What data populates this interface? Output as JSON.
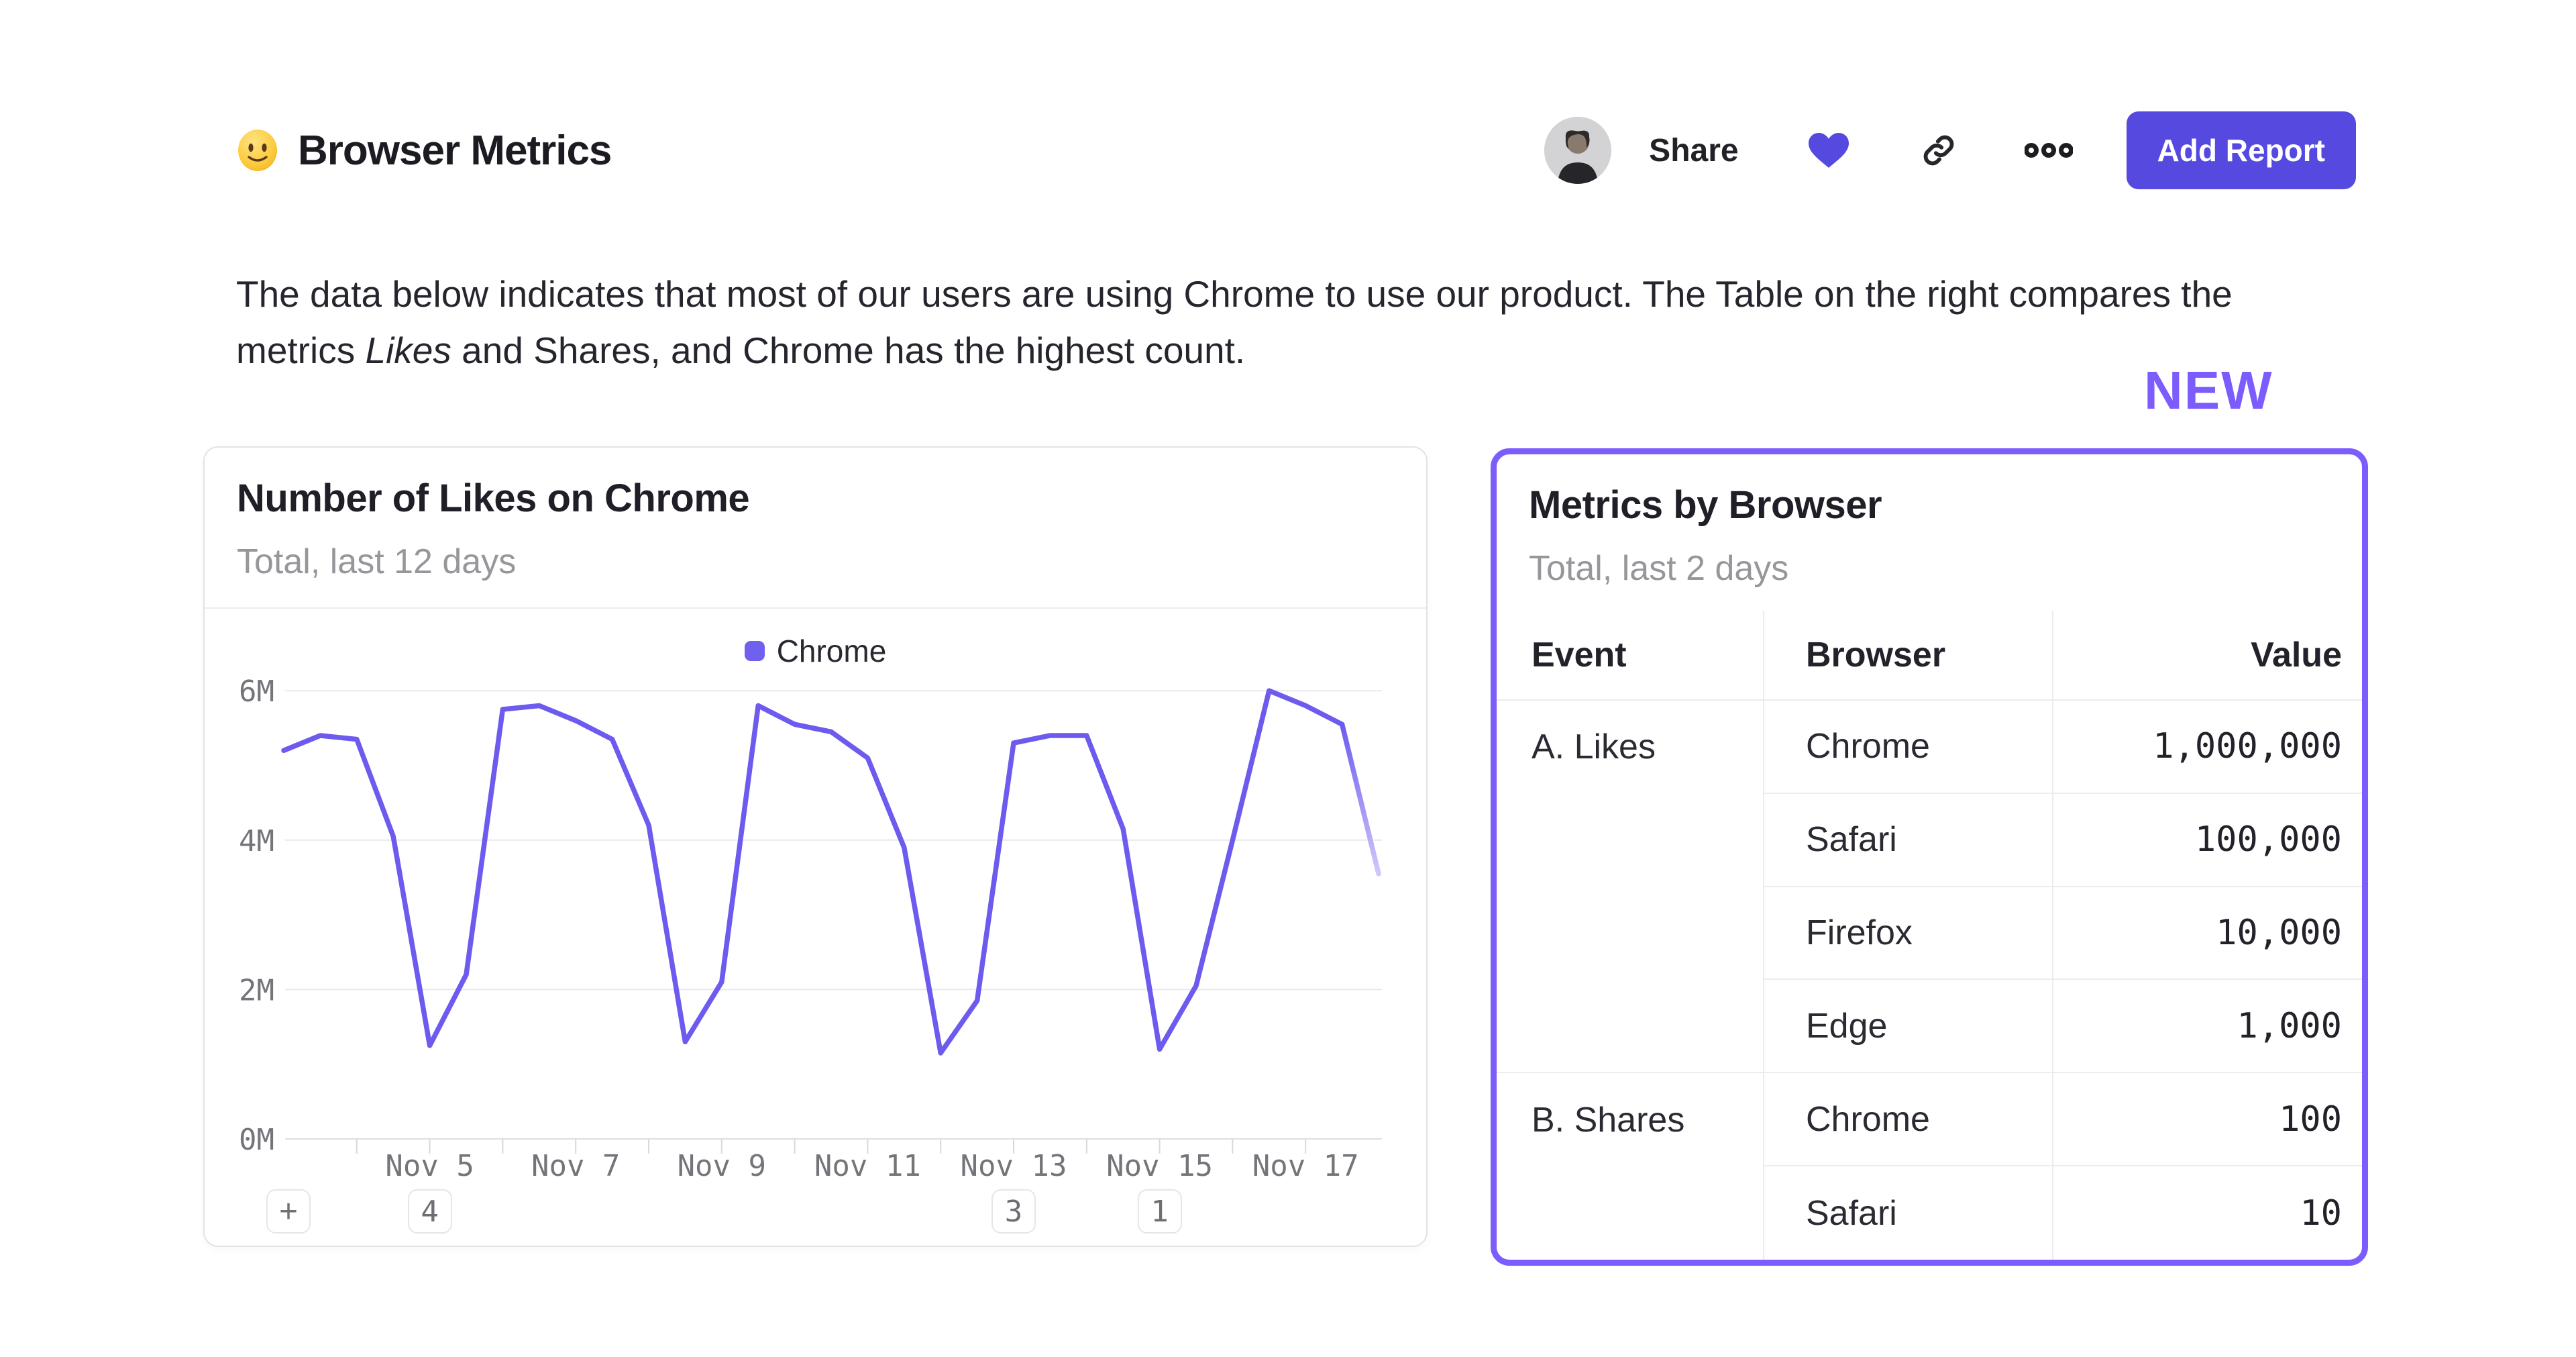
{
  "header": {
    "emoji_icon": "slightly-smiling-face-icon",
    "title": "Browser Metrics",
    "share_label": "Share",
    "add_report_label": "Add Report"
  },
  "description": {
    "line1": "The data below indicates that most of our users are using Chrome to use our product. The Table on the right compares the",
    "line2_prefix": "metrics ",
    "line2_italic": "Likes",
    "line2_suffix": " and Shares, and Chrome has the highest count."
  },
  "new_badge_label": "NEW",
  "likes_card": {
    "title": "Number of Likes on Chrome",
    "subtitle": "Total, last 12 days",
    "plus_button_label": "+",
    "annotations": [
      {
        "label": "4",
        "date": "Nov 5",
        "day_offset": 2
      },
      {
        "label": "3",
        "date": "Nov 13",
        "day_offset": 10
      },
      {
        "label": "1",
        "date": "Nov 15",
        "day_offset": 12
      }
    ]
  },
  "chart_data": {
    "type": "line",
    "title": "Number of Likes on Chrome",
    "subtitle": "Total, last 12 days",
    "legend": {
      "position": "top",
      "entries": [
        "Chrome"
      ]
    },
    "grid": "horizontal",
    "unit": "millions of likes",
    "x_start_date": "Nov 3",
    "x_end_date": "Nov 18",
    "x_step_days": 0.5,
    "ylim": [
      0,
      6.3
    ],
    "y_ticks": [
      {
        "value": 0,
        "label": "0M"
      },
      {
        "value": 2,
        "label": "2M"
      },
      {
        "value": 4,
        "label": "4M"
      },
      {
        "value": 6,
        "label": "6M"
      }
    ],
    "day_tick_range": [
      1,
      14
    ],
    "x_tick_labels": [
      {
        "day_offset": 2,
        "label": "Nov 5"
      },
      {
        "day_offset": 4,
        "label": "Nov 7"
      },
      {
        "day_offset": 6,
        "label": "Nov 9"
      },
      {
        "day_offset": 8,
        "label": "Nov 11"
      },
      {
        "day_offset": 10,
        "label": "Nov 13"
      },
      {
        "day_offset": 12,
        "label": "Nov 15"
      },
      {
        "day_offset": 14,
        "label": "Nov 17"
      }
    ],
    "last_segment_faded": true,
    "series": [
      {
        "name": "Chrome",
        "color": "#6C5BEE",
        "values": [
          5.2,
          5.4,
          5.35,
          4.05,
          1.25,
          2.2,
          5.75,
          5.8,
          5.6,
          5.35,
          4.2,
          1.3,
          2.1,
          5.8,
          5.55,
          5.45,
          5.1,
          3.9,
          1.15,
          1.85,
          5.3,
          5.4,
          5.4,
          4.15,
          1.2,
          2.05,
          4.0,
          6.0,
          5.8,
          5.55,
          3.55
        ]
      }
    ]
  },
  "metrics_card": {
    "title": "Metrics by Browser",
    "subtitle": "Total, last 2 days",
    "columns": [
      "Event",
      "Browser",
      "Value"
    ],
    "rows": [
      {
        "event": "A. Likes",
        "browser": "Chrome",
        "value": "1,000,000"
      },
      {
        "event": "",
        "browser": "Safari",
        "value": "100,000"
      },
      {
        "event": "",
        "browser": "Firefox",
        "value": "10,000"
      },
      {
        "event": "",
        "browser": "Edge",
        "value": "1,000"
      },
      {
        "event": "B. Shares",
        "browser": "Chrome",
        "value": "100"
      },
      {
        "event": "",
        "browser": "Safari",
        "value": "10"
      }
    ]
  },
  "colors": {
    "accent_indigo": "#5549E0",
    "line_purple": "#6C5BEE",
    "highlight_purple": "#7C5CFC",
    "divider_gray": "#ececef",
    "text_dark": "#232129",
    "text_gray": "#96969b"
  }
}
